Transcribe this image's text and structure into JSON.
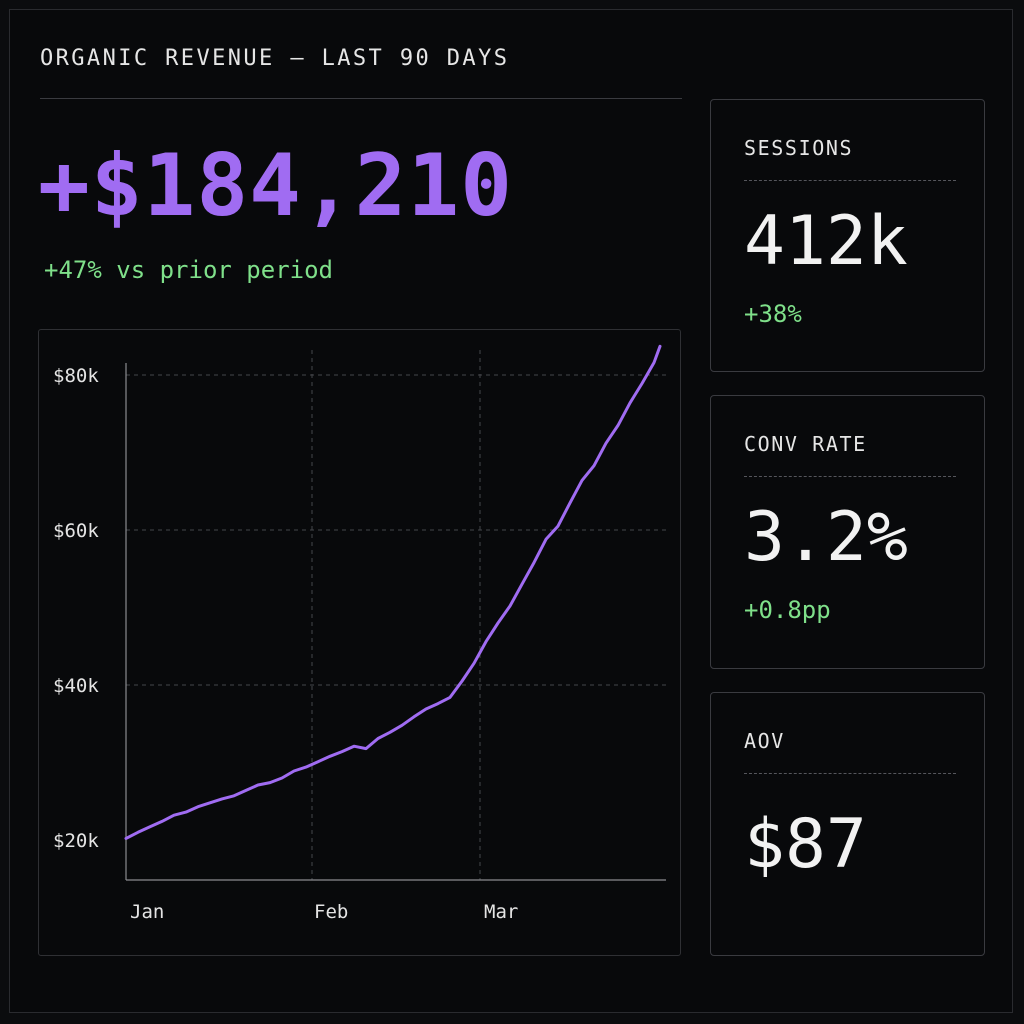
{
  "header": {
    "title": "ORGANIC REVENUE — LAST 90 DAYS"
  },
  "hero": {
    "value": "+$184,210",
    "delta": "+47% vs prior period"
  },
  "cards": [
    {
      "label": "SESSIONS",
      "value": "412k",
      "delta": "+38%"
    },
    {
      "label": "CONV RATE",
      "value": "3.2%",
      "delta": "+0.8pp"
    },
    {
      "label": "AOV",
      "value": "$87",
      "delta": ""
    }
  ],
  "colors": {
    "accent": "#a06cf2",
    "positive": "#7fe08a",
    "background": "#08090b"
  },
  "chart_data": {
    "type": "line",
    "x_ticks": [
      "Jan",
      "Feb",
      "Mar"
    ],
    "y_ticks": [
      "$20k",
      "$40k",
      "$60k",
      "$80k"
    ],
    "ylim": [
      20000,
      80000
    ],
    "xlim": [
      0,
      90
    ],
    "grid": true,
    "series": [
      {
        "x": [
          0,
          2,
          4,
          6,
          8,
          10,
          12,
          14,
          16,
          18,
          20,
          22,
          24,
          26,
          28,
          30,
          32,
          34,
          36,
          38,
          40,
          42,
          44,
          46,
          48,
          50,
          52,
          54,
          56,
          58,
          60,
          62,
          64,
          66,
          68,
          70,
          72,
          74,
          76,
          78,
          80,
          82,
          84,
          86,
          88,
          89
        ],
        "values": [
          20200,
          21000,
          21700,
          22400,
          23200,
          23600,
          24300,
          24800,
          25300,
          25700,
          26400,
          27100,
          27400,
          28000,
          28900,
          29400,
          30100,
          30800,
          31400,
          32100,
          31800,
          33100,
          33900,
          34800,
          35900,
          36900,
          37600,
          38400,
          40500,
          42800,
          45600,
          48000,
          50200,
          53000,
          55800,
          58800,
          60500,
          63500,
          66400,
          68300,
          71200,
          73500,
          76400,
          78900,
          81600,
          83700
        ]
      }
    ]
  }
}
